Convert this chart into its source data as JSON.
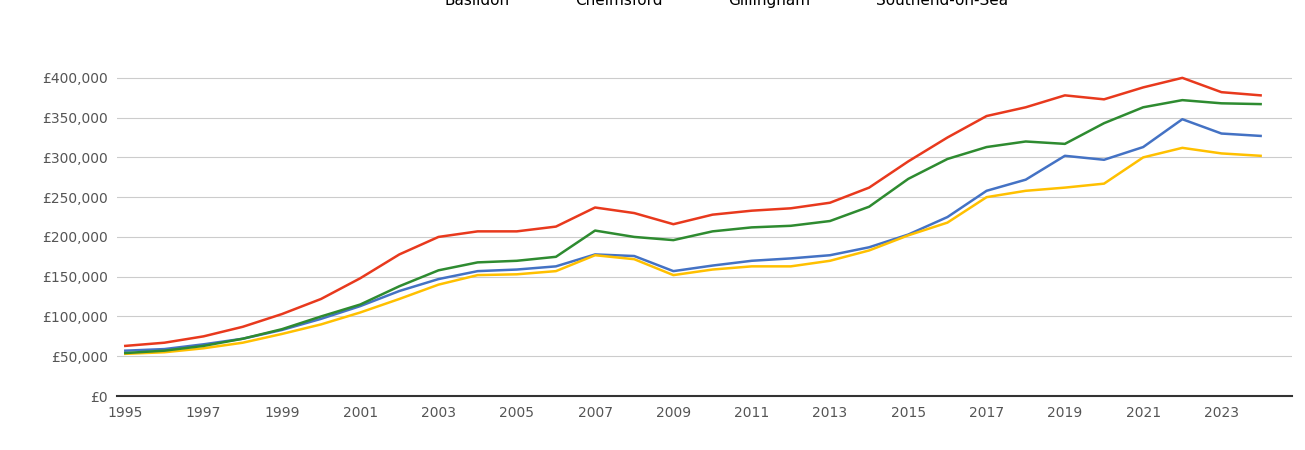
{
  "years": [
    1995,
    1996,
    1997,
    1998,
    1999,
    2000,
    2001,
    2002,
    2003,
    2004,
    2005,
    2006,
    2007,
    2008,
    2009,
    2010,
    2011,
    2012,
    2013,
    2014,
    2015,
    2016,
    2017,
    2018,
    2019,
    2020,
    2021,
    2022,
    2023,
    2024
  ],
  "Basildon": [
    57000,
    59000,
    65000,
    72000,
    83000,
    97000,
    113000,
    132000,
    147000,
    157000,
    159000,
    163000,
    178000,
    176000,
    157000,
    164000,
    170000,
    173000,
    177000,
    187000,
    203000,
    225000,
    258000,
    272000,
    302000,
    297000,
    313000,
    348000,
    330000,
    327000
  ],
  "Chelmsford": [
    63000,
    67000,
    75000,
    87000,
    103000,
    122000,
    148000,
    178000,
    200000,
    207000,
    207000,
    213000,
    237000,
    230000,
    216000,
    228000,
    233000,
    236000,
    243000,
    262000,
    295000,
    325000,
    352000,
    363000,
    378000,
    373000,
    388000,
    400000,
    382000,
    378000
  ],
  "Gillingham": [
    53000,
    55000,
    60000,
    67000,
    78000,
    90000,
    105000,
    122000,
    140000,
    152000,
    153000,
    157000,
    177000,
    172000,
    152000,
    159000,
    163000,
    163000,
    170000,
    183000,
    202000,
    218000,
    250000,
    258000,
    262000,
    267000,
    300000,
    312000,
    305000,
    302000
  ],
  "Southend-on-Sea": [
    54000,
    57000,
    63000,
    72000,
    84000,
    100000,
    115000,
    138000,
    158000,
    168000,
    170000,
    175000,
    208000,
    200000,
    196000,
    207000,
    212000,
    214000,
    220000,
    238000,
    273000,
    298000,
    313000,
    320000,
    317000,
    343000,
    363000,
    372000,
    368000,
    367000
  ],
  "colors": {
    "Basildon": "#4472c4",
    "Chelmsford": "#e8391d",
    "Gillingham": "#ffc000",
    "Southend-on-Sea": "#2e8b30"
  },
  "ylim": [
    0,
    430000
  ],
  "yticks": [
    0,
    50000,
    100000,
    150000,
    200000,
    250000,
    300000,
    350000,
    400000
  ],
  "ytick_labels": [
    "£0",
    "£50,000",
    "£100,000",
    "£150,000",
    "£200,000",
    "£250,000",
    "£300,000",
    "£350,000",
    "£400,000"
  ],
  "xticks": [
    1995,
    1997,
    1999,
    2001,
    2003,
    2005,
    2007,
    2009,
    2011,
    2013,
    2015,
    2017,
    2019,
    2021,
    2023
  ],
  "line_width": 1.8,
  "background_color": "#ffffff",
  "grid_color": "#cccccc",
  "xlim_left": 1994.8,
  "xlim_right": 2024.8
}
